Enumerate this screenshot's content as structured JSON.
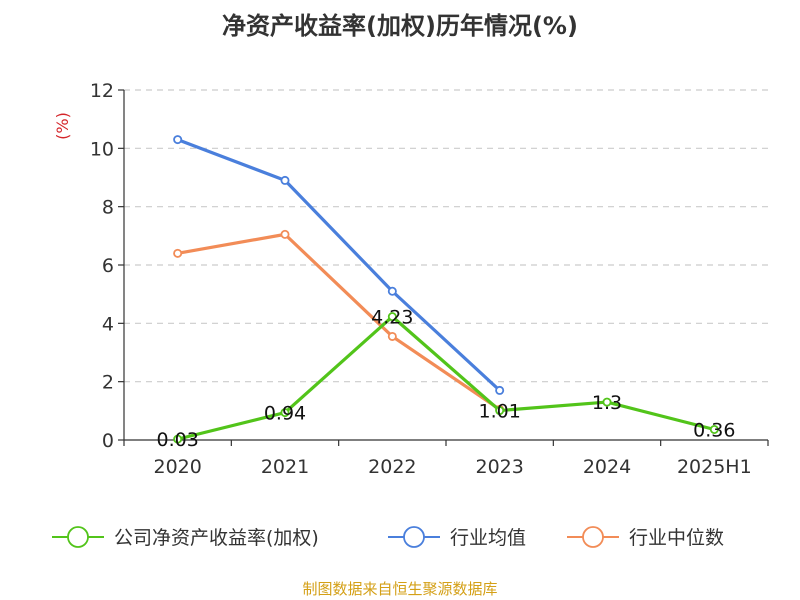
{
  "chart_data": {
    "type": "line",
    "title": "净资产收益率(加权)历年情况(%)",
    "ylabel": "(%)",
    "xlabel": "",
    "categories": [
      "2020",
      "2021",
      "2022",
      "2023",
      "2024",
      "2025H1"
    ],
    "ylim": [
      0,
      12
    ],
    "yticks": [
      0,
      2,
      4,
      6,
      8,
      10,
      12
    ],
    "grid": true,
    "legend_position": "bottom",
    "series": [
      {
        "name": "公司净资产收益率(加权)",
        "color": "#52c41a",
        "values": [
          0.03,
          0.94,
          4.23,
          1.01,
          1.3,
          0.36
        ],
        "labels": [
          "0.03",
          "0.94",
          "4.23",
          "1.01",
          "1.3",
          "0.36"
        ]
      },
      {
        "name": "行业均值",
        "color": "#4a7fdc",
        "values": [
          10.3,
          8.9,
          5.1,
          1.7,
          null,
          null
        ]
      },
      {
        "name": "行业中位数",
        "color": "#f28c57",
        "values": [
          6.4,
          7.05,
          3.55,
          1.05,
          null,
          null
        ]
      }
    ]
  },
  "footer": {
    "source": "制图数据来自恒生聚源数据库",
    "source_color": "#d4a017"
  },
  "colors": {
    "ylabel": "#d4252a",
    "axis": "#333333",
    "grid": "#cccccc"
  }
}
